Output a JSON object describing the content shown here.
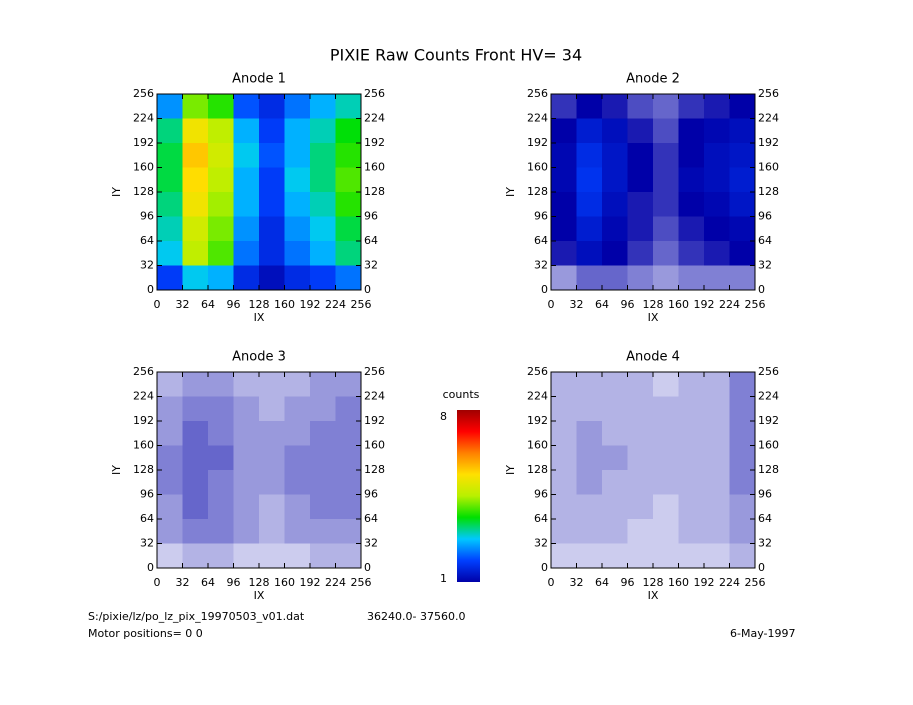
{
  "title": "PIXIE Raw Counts Front HV= 34",
  "footer": {
    "file": "S:/pixie/lz/po_lz_pix_19970503_v01.dat",
    "range": "36240.0- 37560.0",
    "motor": "Motor positions= 0 0",
    "date": "6-May-1997"
  },
  "chart_data": [
    {
      "type": "heatmap",
      "title": "Anode 1",
      "xlabel": "IX",
      "ylabel": "IY",
      "xlim": [
        0,
        256
      ],
      "ylim": [
        0,
        256
      ],
      "xticks": [
        0,
        32,
        64,
        96,
        128,
        160,
        192,
        224,
        256
      ],
      "yticks": [
        0,
        32,
        64,
        96,
        128,
        160,
        192,
        224,
        256
      ],
      "values": [
        [
          2.4,
          4.2,
          3.8,
          2.0,
          1.6,
          2.2,
          2.6,
          3.0
        ],
        [
          3.2,
          5.2,
          4.6,
          2.6,
          1.8,
          2.6,
          3.0,
          3.6
        ],
        [
          3.4,
          5.6,
          4.8,
          2.8,
          2.0,
          2.6,
          3.2,
          3.8
        ],
        [
          3.4,
          5.4,
          4.6,
          2.6,
          1.8,
          2.8,
          3.2,
          4.0
        ],
        [
          3.2,
          5.2,
          4.4,
          2.6,
          1.8,
          2.6,
          3.0,
          3.8
        ],
        [
          3.0,
          4.8,
          4.2,
          2.4,
          1.6,
          2.4,
          2.8,
          3.4
        ],
        [
          2.8,
          4.6,
          4.0,
          2.2,
          1.6,
          2.2,
          2.6,
          3.2
        ],
        [
          1.8,
          2.8,
          2.6,
          1.6,
          1.2,
          1.6,
          1.8,
          2.2
        ]
      ]
    },
    {
      "type": "heatmap",
      "title": "Anode 2",
      "xlabel": "IX",
      "ylabel": "IY",
      "xlim": [
        0,
        256
      ],
      "ylim": [
        0,
        256
      ],
      "xticks": [
        0,
        32,
        64,
        96,
        128,
        160,
        192,
        224,
        256
      ],
      "yticks": [
        0,
        32,
        64,
        96,
        128,
        160,
        192,
        224,
        256
      ],
      "values": [
        [
          0.8,
          1.0,
          0.9,
          0.7,
          0.6,
          0.8,
          0.9,
          1.0
        ],
        [
          1.0,
          1.4,
          1.2,
          0.9,
          0.7,
          1.0,
          1.1,
          1.2
        ],
        [
          1.1,
          1.6,
          1.3,
          1.0,
          0.8,
          1.0,
          1.2,
          1.3
        ],
        [
          1.1,
          1.7,
          1.3,
          1.0,
          0.8,
          1.1,
          1.2,
          1.4
        ],
        [
          1.0,
          1.6,
          1.2,
          0.9,
          0.8,
          1.0,
          1.1,
          1.3
        ],
        [
          1.0,
          1.4,
          1.1,
          0.9,
          0.7,
          0.9,
          1.0,
          1.1
        ],
        [
          0.9,
          1.2,
          1.0,
          0.8,
          0.6,
          0.8,
          0.9,
          1.0
        ],
        [
          0.4,
          0.6,
          0.6,
          0.5,
          0.4,
          0.5,
          0.5,
          0.5
        ]
      ]
    },
    {
      "type": "heatmap",
      "title": "Anode 3",
      "xlabel": "IX",
      "ylabel": "IY",
      "xlim": [
        0,
        256
      ],
      "ylim": [
        0,
        256
      ],
      "xticks": [
        0,
        32,
        64,
        96,
        128,
        160,
        192,
        224,
        256
      ],
      "yticks": [
        0,
        32,
        64,
        96,
        128,
        160,
        192,
        224,
        256
      ],
      "values": [
        [
          0.3,
          0.4,
          0.4,
          0.3,
          0.3,
          0.3,
          0.4,
          0.4
        ],
        [
          0.4,
          0.5,
          0.5,
          0.4,
          0.3,
          0.4,
          0.4,
          0.5
        ],
        [
          0.4,
          0.6,
          0.5,
          0.4,
          0.4,
          0.4,
          0.5,
          0.5
        ],
        [
          0.5,
          0.6,
          0.6,
          0.4,
          0.4,
          0.5,
          0.5,
          0.5
        ],
        [
          0.5,
          0.6,
          0.5,
          0.4,
          0.4,
          0.5,
          0.5,
          0.5
        ],
        [
          0.4,
          0.6,
          0.5,
          0.4,
          0.3,
          0.4,
          0.5,
          0.5
        ],
        [
          0.4,
          0.5,
          0.5,
          0.4,
          0.3,
          0.4,
          0.4,
          0.4
        ],
        [
          0.2,
          0.3,
          0.3,
          0.2,
          0.2,
          0.2,
          0.3,
          0.3
        ]
      ]
    },
    {
      "type": "heatmap",
      "title": "Anode 4",
      "xlabel": "IX",
      "ylabel": "IY",
      "xlim": [
        0,
        256
      ],
      "ylim": [
        0,
        256
      ],
      "xticks": [
        0,
        32,
        64,
        96,
        128,
        160,
        192,
        224,
        256
      ],
      "yticks": [
        0,
        32,
        64,
        96,
        128,
        160,
        192,
        224,
        256
      ],
      "values": [
        [
          0.3,
          0.3,
          0.3,
          0.3,
          0.2,
          0.3,
          0.3,
          0.5
        ],
        [
          0.3,
          0.3,
          0.3,
          0.3,
          0.3,
          0.3,
          0.3,
          0.5
        ],
        [
          0.3,
          0.4,
          0.3,
          0.3,
          0.3,
          0.3,
          0.3,
          0.5
        ],
        [
          0.3,
          0.4,
          0.4,
          0.3,
          0.3,
          0.3,
          0.3,
          0.5
        ],
        [
          0.3,
          0.4,
          0.3,
          0.3,
          0.3,
          0.3,
          0.3,
          0.5
        ],
        [
          0.3,
          0.3,
          0.3,
          0.3,
          0.2,
          0.3,
          0.3,
          0.4
        ],
        [
          0.3,
          0.3,
          0.3,
          0.2,
          0.2,
          0.3,
          0.3,
          0.4
        ],
        [
          0.2,
          0.2,
          0.2,
          0.2,
          0.2,
          0.2,
          0.2,
          0.3
        ]
      ]
    },
    {
      "type": "colorbar",
      "title": "counts",
      "clim": [
        1,
        8
      ],
      "ticks": [
        1,
        8
      ],
      "colors": [
        "#0000a8",
        "#0040ff",
        "#00c8ff",
        "#00e000",
        "#b8f000",
        "#ffe000",
        "#ff8000",
        "#ff0000",
        "#a00000"
      ]
    }
  ]
}
